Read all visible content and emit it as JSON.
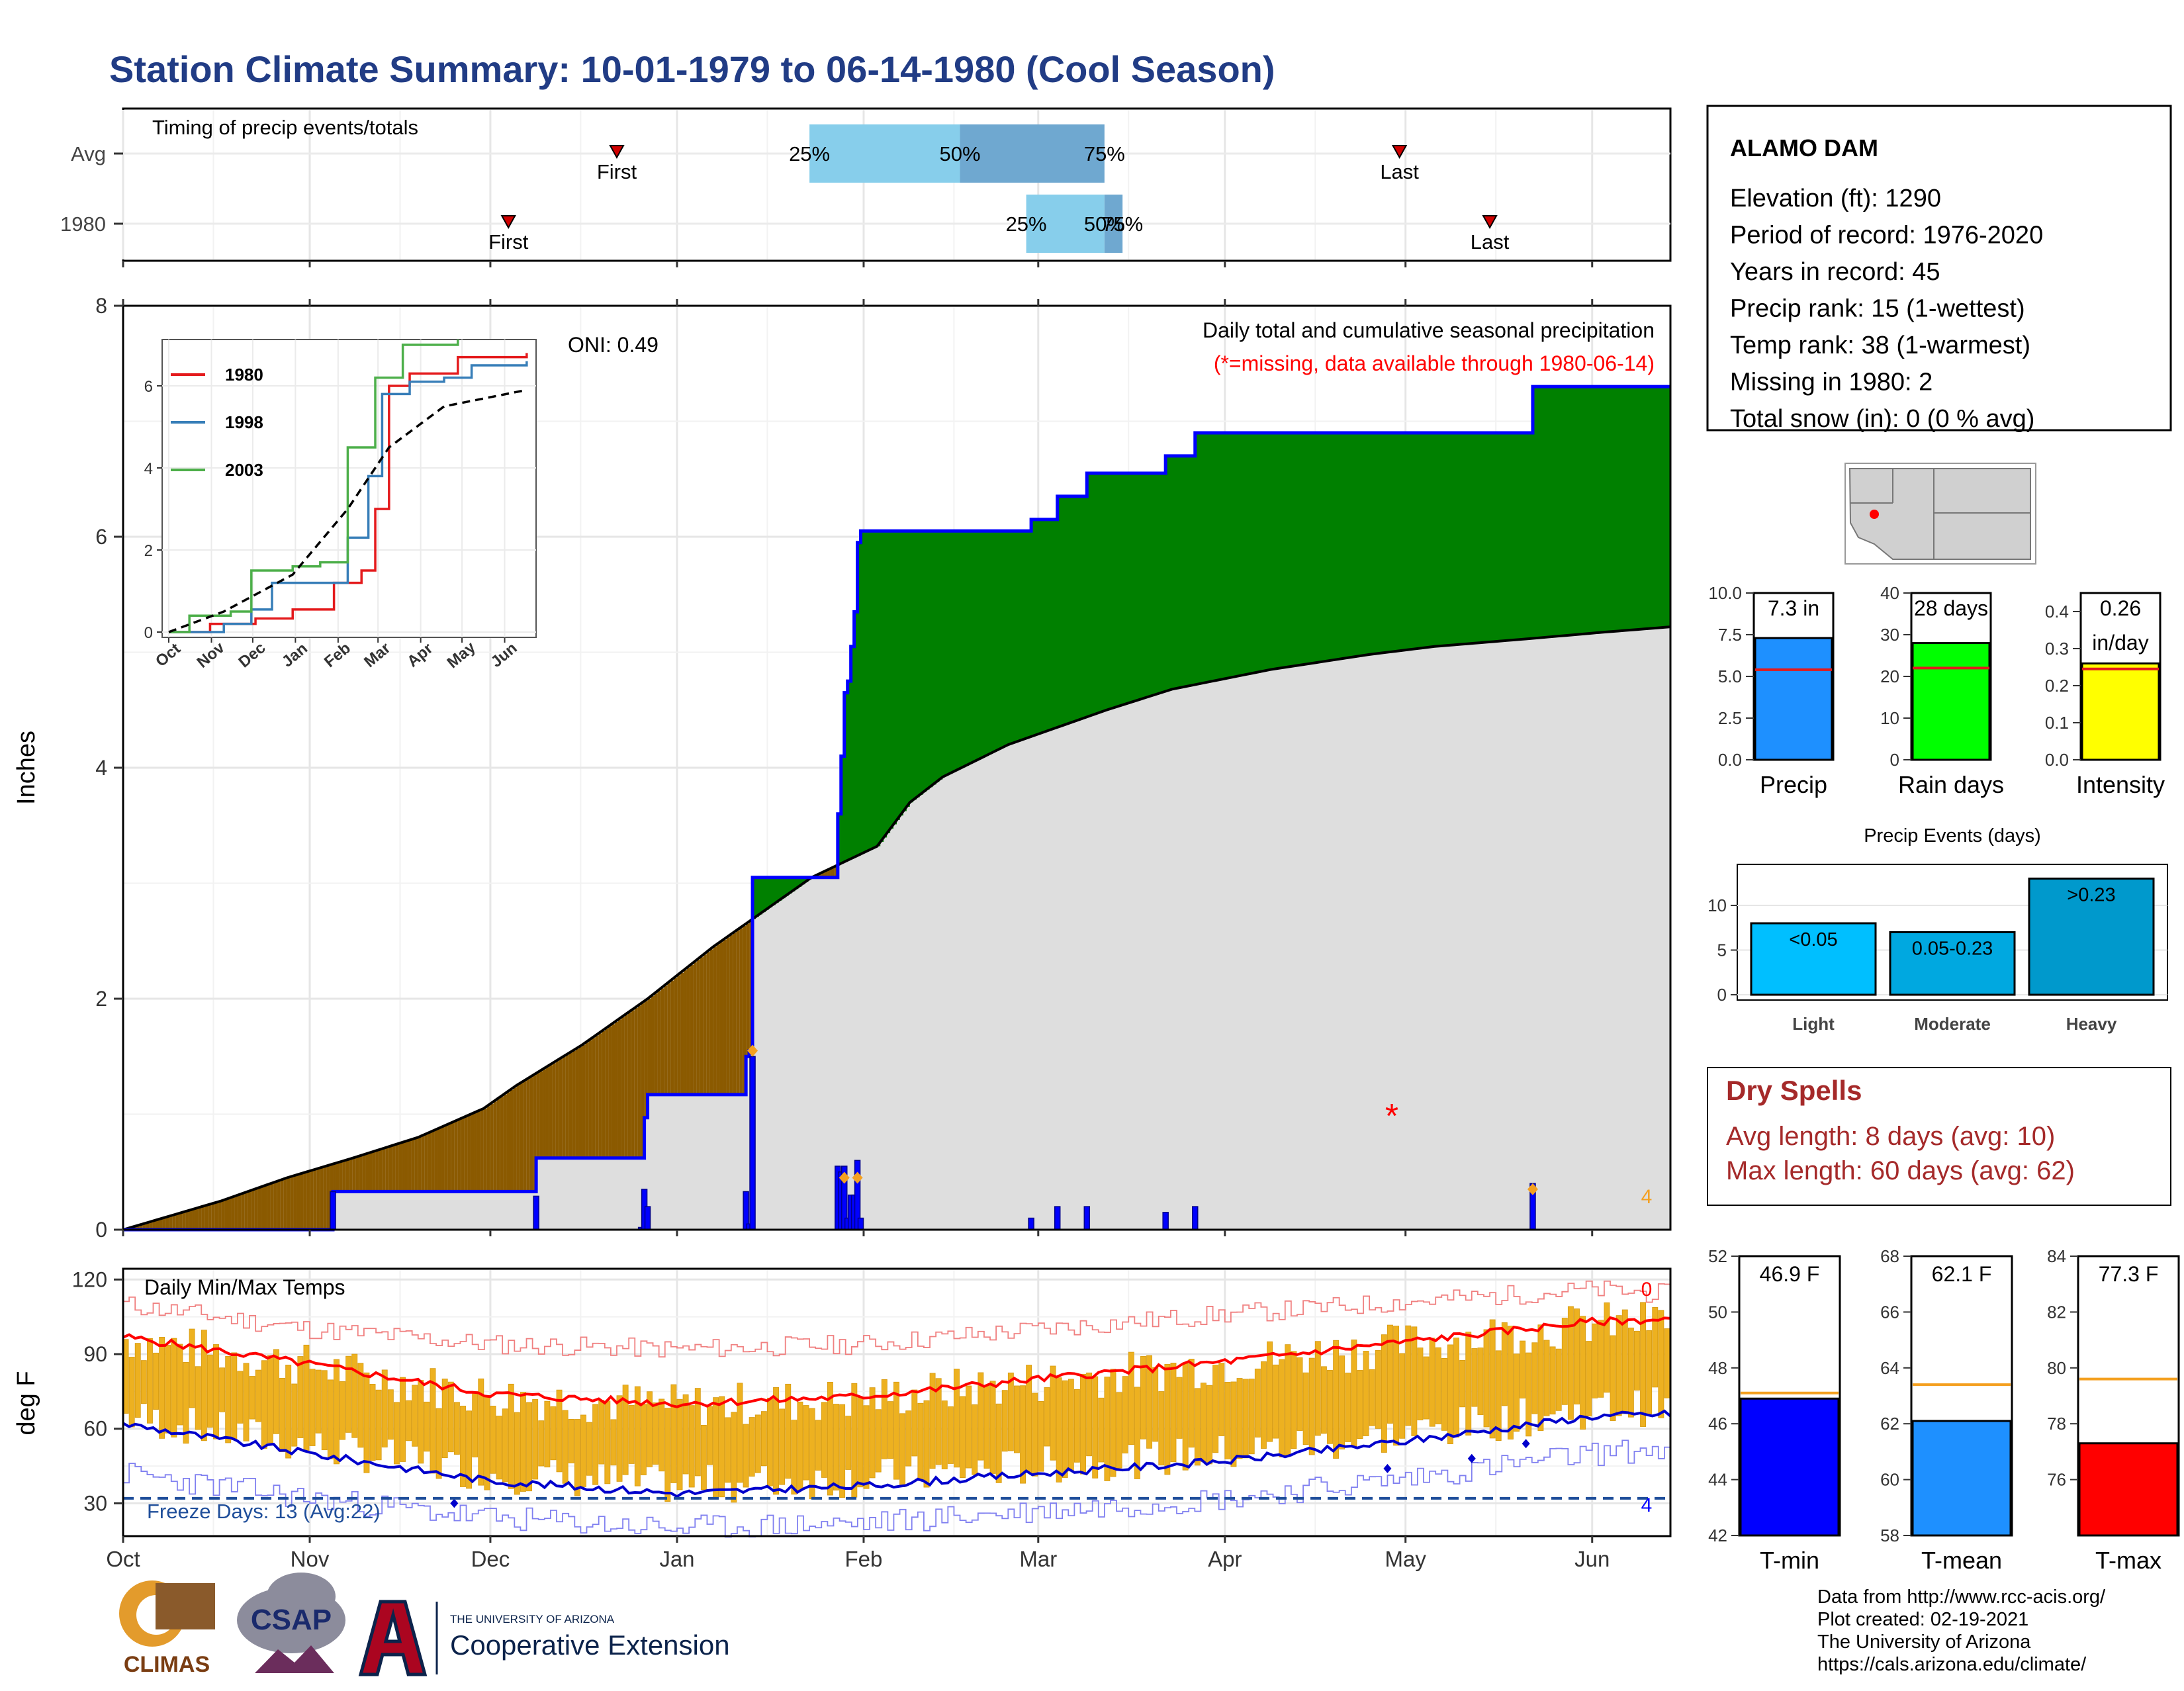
{
  "title": "Station Climate Summary: 10-01-1979 to 06-14-1980 (Cool Season)",
  "months": [
    "Oct",
    "Nov",
    "Dec",
    "Jan",
    "Feb",
    "Mar",
    "Apr",
    "May",
    "Jun"
  ],
  "timing": {
    "label": "Timing of precip events/totals",
    "rows": [
      {
        "name": "Avg",
        "first_label": "First",
        "last_label": "Last",
        "first_day": 82,
        "last_day": 212,
        "q25_day": 114,
        "q50_day": 139,
        "q75_day": 163,
        "q25_label": "25%",
        "q50_label": "50%",
        "q75_label": "75%"
      },
      {
        "name": "1980",
        "first_label": "First",
        "last_label": "Last",
        "first_day": 64,
        "last_day": 227,
        "q25_day": 150,
        "q50_day": 163,
        "q75_day": 166,
        "q25_label": "25%",
        "q50_label": "50%",
        "q75_label": "75%"
      }
    ]
  },
  "main": {
    "ylabel": "Inches",
    "yticks": [
      "0",
      "2",
      "4",
      "6",
      "8"
    ],
    "oni": "ONI: 0.49",
    "caption": "Daily total and cumulative seasonal precipitation",
    "missing_note": "(*=missing, data available through 1980-06-14)",
    "count_label": "4",
    "colors": {
      "wet": "#008000",
      "dry": "#8B5A00",
      "avg_fill": "#DEDEDE",
      "cum_line": "#0000FF",
      "daily_bar": "#0000FF",
      "marker": "#F4A020",
      "missing": "#FF0000"
    }
  },
  "inset": {
    "legend": [
      "1980",
      "1998",
      "2003"
    ],
    "colors": [
      "#E41A1C",
      "#377EB8",
      "#4DAF4A"
    ],
    "yticks": [
      "0",
      "2",
      "4",
      "6"
    ],
    "months": [
      "Oct",
      "Nov",
      "Dec",
      "Jan",
      "Feb",
      "Mar",
      "Apr",
      "May",
      "Jun"
    ]
  },
  "station": {
    "name": "ALAMO DAM",
    "lines": [
      "Elevation (ft): 1290",
      "Period of record: 1976-2020",
      "Years in record: 45",
      "Precip rank: 15 (1-wettest)",
      "Temp rank: 38 (1-warmest)",
      "Missing in 1980: 2",
      "Total snow (in): 0 (0 % avg)"
    ]
  },
  "summary_bars": [
    {
      "label": "Precip",
      "value": 7.3,
      "avg": 5.4,
      "text": "7.3 in",
      "text2": "",
      "max": 10,
      "ticks": [
        "0.0",
        "2.5",
        "5.0",
        "7.5",
        "10.0"
      ],
      "color": "#1E90FF"
    },
    {
      "label": "Rain days",
      "value": 28,
      "avg": 22,
      "text": "28 days",
      "text2": "",
      "max": 40,
      "ticks": [
        "0",
        "10",
        "20",
        "30",
        "40"
      ],
      "color": "#00FF00"
    },
    {
      "label": "Intensity",
      "value": 0.26,
      "avg": 0.245,
      "text": "0.26",
      "text2": "in/day",
      "max": 0.45,
      "ticks": [
        "0.0",
        "0.1",
        "0.2",
        "0.3",
        "0.4"
      ],
      "color": "#FFFF00"
    }
  ],
  "precip_events": {
    "title": "Precip Events (days)",
    "categories": [
      "Light",
      "Moderate",
      "Heavy"
    ],
    "values": [
      8,
      7,
      13
    ],
    "labels": [
      "<0.05",
      "0.05-0.23",
      ">0.23"
    ],
    "yticks": [
      "0",
      "5",
      "10"
    ],
    "color": "#00BFFF"
  },
  "dry_spells": {
    "title": "Dry Spells",
    "avg_line": "Avg length: 8 days (avg: 10)",
    "max_line": "Max length: 60 days (avg: 62)"
  },
  "temps": {
    "label": "Daily Min/Max Temps",
    "ylabel": "deg F",
    "yticks": [
      "30",
      "60",
      "90",
      "120"
    ],
    "freeze": "Freeze Days: 13 (Avg:22)",
    "count_top": "0",
    "count_bottom": "4"
  },
  "temp_bars": [
    {
      "label": "T-min",
      "value": 46.9,
      "avg": 47.1,
      "text": "46.9 F",
      "min": 42,
      "max": 52,
      "ticks": [
        "42",
        "44",
        "46",
        "48",
        "50",
        "52"
      ],
      "color": "#0000FF"
    },
    {
      "label": "T-mean",
      "value": 62.1,
      "avg": 63.4,
      "text": "62.1 F",
      "min": 58,
      "max": 68,
      "ticks": [
        "58",
        "60",
        "62",
        "64",
        "66",
        "68"
      ],
      "color": "#1E90FF"
    },
    {
      "label": "T-max",
      "value": 77.3,
      "avg": 79.6,
      "text": "77.3 F",
      "min": 74,
      "max": 84,
      "ticks": [
        "76",
        "78",
        "80",
        "82",
        "84"
      ],
      "color": "#FF0000"
    }
  ],
  "footer": {
    "lines": [
      "Data from http://www.rcc-acis.org/",
      "Plot created: 02-19-2021",
      "The University of Arizona",
      "https://cals.arizona.edu/climate/"
    ],
    "logo_climas": "CLIMAS",
    "logo_csap": "CSAP",
    "logo_ua_small": "THE UNIVERSITY OF ARIZONA",
    "logo_ua_big": "Cooperative Extension"
  },
  "chart_data": [
    {
      "type": "area",
      "title": "Daily total and cumulative seasonal precipitation",
      "ylabel": "Inches",
      "ylim": [
        0,
        8
      ],
      "x_axis": "day of season (0 = Oct 1, 1979)",
      "cumulative_1980": [
        [
          0,
          0
        ],
        [
          63,
          0
        ],
        [
          64,
          0.33
        ],
        [
          125,
          0.33
        ],
        [
          126,
          0.62
        ],
        [
          158,
          0.62
        ],
        [
          159,
          0.97
        ],
        [
          160,
          1.17
        ],
        [
          189,
          1.17
        ],
        [
          190,
          1.5
        ],
        [
          191,
          1.55
        ],
        [
          192,
          3.05
        ],
        [
          217,
          3.05
        ],
        [
          218,
          3.6
        ],
        [
          219,
          4.1
        ],
        [
          220,
          4.65
        ],
        [
          221,
          4.75
        ],
        [
          222,
          5.05
        ],
        [
          223,
          5.35
        ],
        [
          224,
          5.95
        ],
        [
          225,
          6.05
        ],
        [
          276,
          6.05
        ],
        [
          277,
          6.15
        ],
        [
          284,
          6.15
        ],
        [
          285,
          6.35
        ],
        [
          293,
          6.35
        ],
        [
          294,
          6.55
        ],
        [
          317,
          6.55
        ],
        [
          318,
          6.7
        ],
        [
          326,
          6.7
        ],
        [
          327,
          6.9
        ],
        [
          429,
          6.9
        ],
        [
          430,
          7.3
        ],
        [
          472,
          7.3
        ]
      ],
      "average_cumulative": [
        [
          0,
          0
        ],
        [
          30,
          0.25
        ],
        [
          50,
          0.45
        ],
        [
          70,
          0.62
        ],
        [
          90,
          0.8
        ],
        [
          110,
          1.05
        ],
        [
          120,
          1.25
        ],
        [
          140,
          1.6
        ],
        [
          160,
          2.0
        ],
        [
          180,
          2.45
        ],
        [
          200,
          2.85
        ],
        [
          210,
          3.05
        ],
        [
          230,
          3.32
        ],
        [
          240,
          3.7
        ],
        [
          250,
          3.92
        ],
        [
          270,
          4.2
        ],
        [
          300,
          4.5
        ],
        [
          320,
          4.68
        ],
        [
          350,
          4.85
        ],
        [
          380,
          4.98
        ],
        [
          400,
          5.05
        ],
        [
          430,
          5.12
        ],
        [
          450,
          5.17
        ],
        [
          472,
          5.22
        ]
      ],
      "daily": [
        [
          64,
          0.33
        ],
        [
          126,
          0.29
        ],
        [
          158,
          0.02
        ],
        [
          159,
          0.35
        ],
        [
          160,
          0.2
        ],
        [
          190,
          0.33
        ],
        [
          191,
          0.05
        ],
        [
          192,
          1.5
        ],
        [
          218,
          0.55
        ],
        [
          219,
          0.5
        ],
        [
          220,
          0.55
        ],
        [
          221,
          0.1
        ],
        [
          222,
          0.3
        ],
        [
          223,
          0.3
        ],
        [
          224,
          0.6
        ],
        [
          225,
          0.1
        ],
        [
          277,
          0.1
        ],
        [
          285,
          0.2
        ],
        [
          294,
          0.2
        ],
        [
          318,
          0.15
        ],
        [
          327,
          0.2
        ],
        [
          430,
          0.4
        ]
      ],
      "missing_day": 212
    },
    {
      "type": "line",
      "title": "Cumulative precipitation comparison",
      "series": [
        {
          "name": "1980",
          "points": [
            [
              0,
              0
            ],
            [
              30,
              0.2
            ],
            [
              63,
              0.33
            ],
            [
              90,
              0.55
            ],
            [
              120,
              1.2
            ],
            [
              140,
              1.5
            ],
            [
              150,
              3.0
            ],
            [
              160,
              6.0
            ],
            [
              175,
              6.3
            ],
            [
              200,
              6.3
            ],
            [
              210,
              6.7
            ],
            [
              260,
              6.8
            ]
          ]
        },
        {
          "name": "1998",
          "points": [
            [
              0,
              0
            ],
            [
              40,
              0.2
            ],
            [
              60,
              0.55
            ],
            [
              75,
              1.2
            ],
            [
              100,
              1.2
            ],
            [
              130,
              2.3
            ],
            [
              145,
              3.8
            ],
            [
              155,
              5.8
            ],
            [
              175,
              6.1
            ],
            [
              200,
              6.2
            ],
            [
              220,
              6.5
            ],
            [
              260,
              6.6
            ]
          ]
        },
        {
          "name": "2003",
          "points": [
            [
              0,
              0
            ],
            [
              15,
              0.4
            ],
            [
              45,
              0.5
            ],
            [
              60,
              1.5
            ],
            [
              90,
              1.6
            ],
            [
              110,
              1.7
            ],
            [
              130,
              4.5
            ],
            [
              150,
              6.2
            ],
            [
              170,
              7.0
            ],
            [
              210,
              7.4
            ]
          ]
        }
      ],
      "average": [
        [
          0,
          0
        ],
        [
          40,
          0.5
        ],
        [
          90,
          1.4
        ],
        [
          130,
          3.0
        ],
        [
          160,
          4.5
        ],
        [
          200,
          5.5
        ],
        [
          260,
          5.9
        ]
      ],
      "ylim": [
        0,
        7
      ]
    },
    {
      "type": "bar",
      "title": "Daily Min/Max Temps",
      "ylabel": "deg F",
      "ylim": [
        20,
        120
      ],
      "freeze_line": 32,
      "avg_tmax_knots": [
        [
          0,
          97
        ],
        [
          31,
          86
        ],
        [
          61,
          74
        ],
        [
          92,
          70
        ],
        [
          123,
          73
        ],
        [
          152,
          80
        ],
        [
          183,
          87
        ],
        [
          213,
          95
        ],
        [
          244,
          103
        ],
        [
          257,
          104
        ]
      ],
      "avg_tmin_knots": [
        [
          0,
          62
        ],
        [
          31,
          50
        ],
        [
          61,
          39
        ],
        [
          92,
          34
        ],
        [
          123,
          37
        ],
        [
          152,
          42
        ],
        [
          183,
          47
        ],
        [
          213,
          55
        ],
        [
          244,
          65
        ],
        [
          257,
          66
        ]
      ],
      "record_high_knots": [
        [
          0,
          110
        ],
        [
          31,
          100
        ],
        [
          61,
          94
        ],
        [
          92,
          92
        ],
        [
          123,
          94
        ],
        [
          152,
          100
        ],
        [
          183,
          106
        ],
        [
          213,
          111
        ],
        [
          244,
          116
        ],
        [
          257,
          114
        ]
      ],
      "record_low_knots": [
        [
          0,
          42
        ],
        [
          31,
          32
        ],
        [
          61,
          24
        ],
        [
          92,
          20
        ],
        [
          123,
          22
        ],
        [
          152,
          27
        ],
        [
          183,
          32
        ],
        [
          213,
          40
        ],
        [
          244,
          50
        ],
        [
          257,
          52
        ]
      ]
    },
    {
      "type": "bar",
      "title": "Precip Events (days)",
      "categories": [
        "Light",
        "Moderate",
        "Heavy"
      ],
      "values": [
        8,
        7,
        13
      ],
      "ylim": [
        0,
        14
      ]
    },
    {
      "type": "bar",
      "categories": [
        "Precip",
        "Rain days",
        "Intensity"
      ],
      "values": [
        7.3,
        28,
        0.26
      ],
      "averages": [
        5.4,
        22,
        0.245
      ]
    },
    {
      "type": "bar",
      "categories": [
        "T-min",
        "T-mean",
        "T-max"
      ],
      "values": [
        46.9,
        62.1,
        77.3
      ],
      "averages": [
        47.1,
        63.4,
        79.6
      ]
    }
  ]
}
